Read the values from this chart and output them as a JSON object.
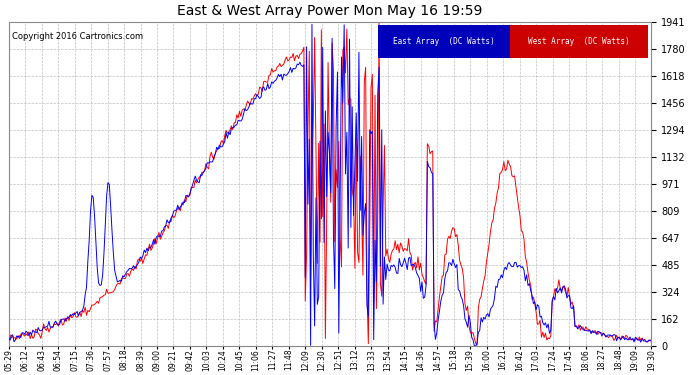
{
  "title": "East & West Array Power Mon May 16 19:59",
  "copyright": "Copyright 2016 Cartronics.com",
  "legend_east": "East Array  (DC Watts)",
  "legend_west": "West Array  (DC Watts)",
  "color_east": "#0000ff",
  "color_west": "#ff0000",
  "color_legend_east_bg": "#0000bb",
  "color_legend_west_bg": "#cc0000",
  "bg_color": "#ffffff",
  "grid_color": "#bbbbbb",
  "yticks": [
    0.0,
    161.8,
    323.5,
    485.3,
    647.1,
    808.9,
    970.6,
    1132.4,
    1294.2,
    1455.9,
    1617.7,
    1779.5,
    1941.2
  ],
  "ylim": [
    0.0,
    1941.2
  ],
  "xtick_labels": [
    "05:29",
    "06:12",
    "06:43",
    "06:54",
    "07:15",
    "07:36",
    "07:57",
    "08:18",
    "08:39",
    "09:00",
    "09:21",
    "09:42",
    "10:03",
    "10:24",
    "10:45",
    "11:06",
    "11:27",
    "11:48",
    "12:09",
    "12:30",
    "12:51",
    "13:12",
    "13:33",
    "13:54",
    "14:15",
    "14:36",
    "14:57",
    "15:18",
    "15:39",
    "16:00",
    "16:21",
    "16:42",
    "17:03",
    "17:24",
    "17:45",
    "18:06",
    "18:27",
    "18:48",
    "19:09",
    "19:30"
  ]
}
